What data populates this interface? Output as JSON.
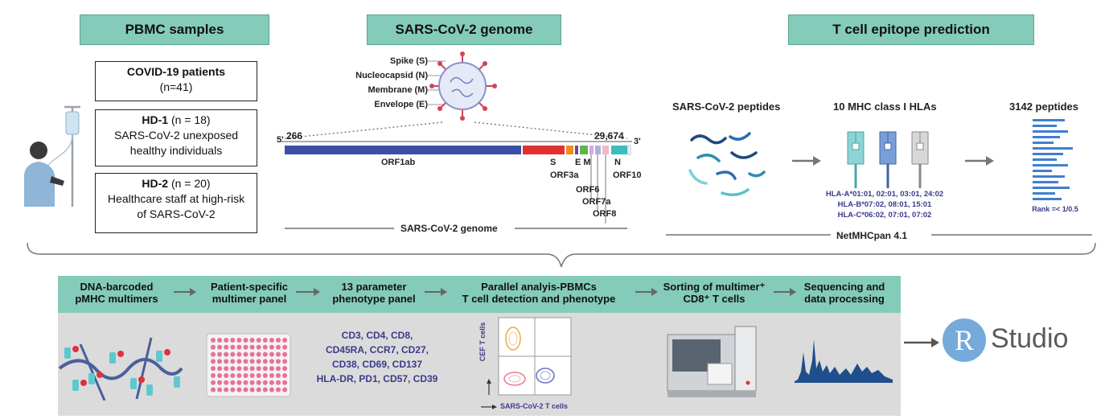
{
  "headers": {
    "pbmc": "PBMC samples",
    "genome": "SARS-CoV-2 genome",
    "prediction": "T cell epitope prediction"
  },
  "cohorts": [
    {
      "title": "COVID-19 patients",
      "n": "(n=41)",
      "desc": ""
    },
    {
      "title": "HD-1",
      "n": " (n = 18)",
      "desc": "SARS-CoV-2 unexposed healthy individuals"
    },
    {
      "title": "HD-2",
      "n": " (n = 20)",
      "desc": "Healthcare staff at high-risk of SARS-CoV-2"
    }
  ],
  "virus_labels": [
    "Spike (S)",
    "Nucleocapsid (N)",
    "Membrane (M)",
    "Envelope (E)"
  ],
  "genome": {
    "five_prime": "5'",
    "three_prime": "3'",
    "start": "266",
    "end": "29,674",
    "orf1ab": "ORF1ab",
    "s": "S",
    "em": "E M",
    "n": "N",
    "orf3a": "ORF3a",
    "orf6": "ORF6",
    "orf7a": "ORF7a",
    "orf8": "ORF8",
    "orf10": "ORF10",
    "caption": "SARS-CoV-2 genome",
    "colors": {
      "orf1ab": "#3b4fa8",
      "s": "#e03030",
      "orf3a": "#f08a24",
      "e": "#7a3fa0",
      "m": "#58b84a",
      "orf6": "#d9a8d8",
      "orf7a": "#b0b0e0",
      "orf8": "#f0b8c8",
      "n": "#3bbcc0"
    }
  },
  "prediction": {
    "peptides_title": "SARS-CoV-2 peptides",
    "hla_title": "10 MHC class I HLAs",
    "result_title": "3142 peptides",
    "hla_a": "HLA-A*01:01, 02:01, 03:01, 24:02",
    "hla_b": "HLA-B*07:02, 08:01, 15:01",
    "hla_c": "HLA-C*06:02, 07:01, 07:02",
    "rank": "Rank =< 1/0.5",
    "tool": "NetMHCpan 4.1"
  },
  "pipeline": {
    "steps": [
      {
        "line1": "DNA-barcoded",
        "line2": "pMHC multimers"
      },
      {
        "line1": "Patient-specific",
        "line2": "multimer panel"
      },
      {
        "line1": "13 parameter",
        "line2": "phenotype panel"
      },
      {
        "line1": "Parallel analyis-PBMCs",
        "line2": "T cell detection and phenotype"
      },
      {
        "line1": "Sorting of multimer⁺",
        "line2": "CD8⁺ T cells"
      },
      {
        "line1": "Sequencing and",
        "line2": "data processing"
      }
    ],
    "markers": [
      "CD3, CD4, CD8,",
      "CD45RA, CCR7, CD27,",
      "CD38, CD69, CD137",
      "HLA-DR, PD1, CD57, CD39"
    ],
    "flow_y": "CEF T cells",
    "flow_x": "SARS-CoV-2 T cells"
  },
  "rstudio": {
    "letter": "R",
    "word": "Studio"
  }
}
